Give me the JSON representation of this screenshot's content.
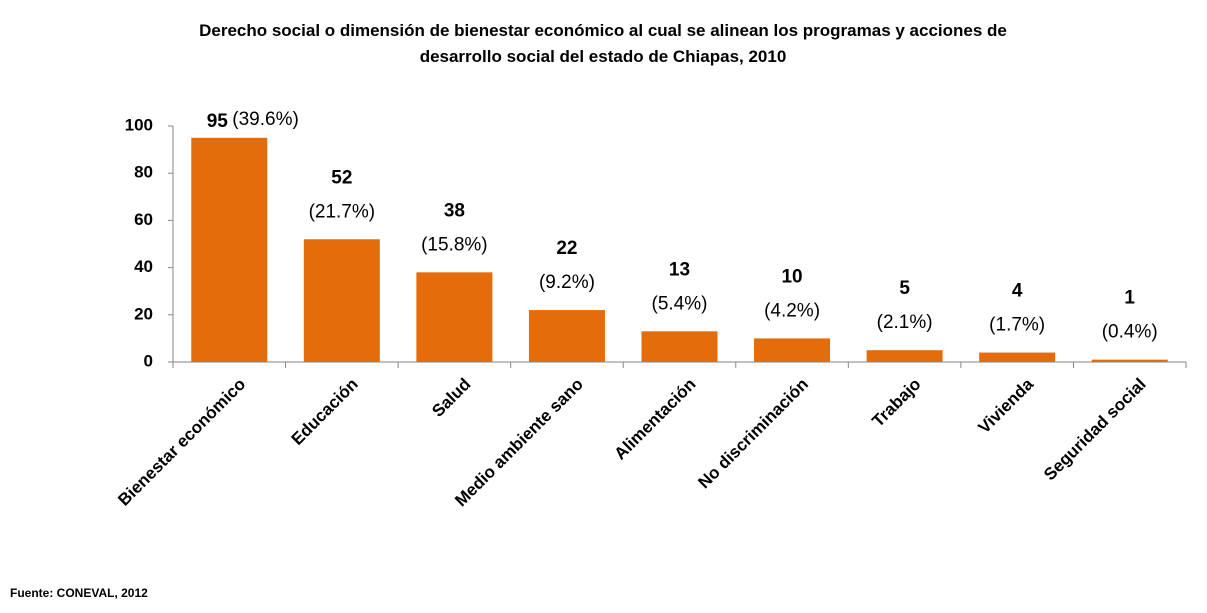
{
  "chart_data": {
    "type": "bar",
    "title": "Derecho social o dimensión de bienestar económico al cual se alinean los programas y acciones de desarrollo social del estado de Chiapas, 2010",
    "categories": [
      "Bienestar económico",
      "Educación",
      "Salud",
      "Medio ambiente sano",
      "Alimentación",
      "No discriminación",
      "Trabajo",
      "Vivienda",
      "Seguridad social"
    ],
    "values": [
      95,
      52,
      38,
      22,
      13,
      10,
      5,
      4,
      1
    ],
    "share_labels": [
      "(39.6%)",
      "(21.7%)",
      "(15.8%)",
      "(9.2%)",
      "(5.4%)",
      "(4.2%)",
      "(2.1%)",
      "(1.7%)",
      "(0.4%)"
    ],
    "color": "#e46c0a",
    "ylim": [
      0,
      100
    ],
    "yticks": [
      0,
      20,
      40,
      60,
      80,
      100
    ],
    "grid": false,
    "source": "Fuente: CONEVAL, 2012"
  }
}
